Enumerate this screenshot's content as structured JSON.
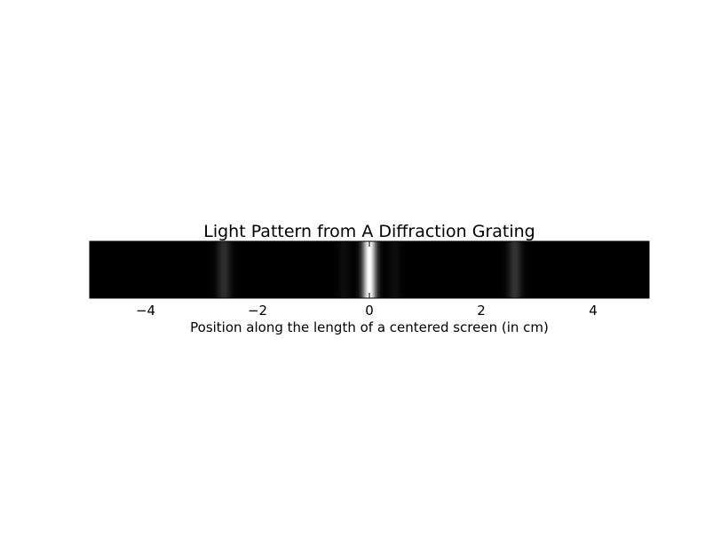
{
  "chart_data": {
    "type": "heatmap",
    "title": "Light Pattern from A Diffraction Grating",
    "xlabel": "Position along the length of a centered screen (in cm)",
    "ylabel": "",
    "xlim": [
      -5,
      5
    ],
    "xticks": [
      -4,
      -2,
      0,
      2,
      4
    ],
    "xtick_labels": [
      "−4",
      "−2",
      "0",
      "2",
      "4"
    ],
    "colormap": "gray",
    "background_color": "#000000",
    "peaks": [
      {
        "x": 0.0,
        "intensity": 1.0,
        "width": 0.12
      },
      {
        "x": -2.6,
        "intensity": 0.18,
        "width": 0.12
      },
      {
        "x": 2.6,
        "intensity": 0.2,
        "width": 0.12
      },
      {
        "x": -0.45,
        "intensity": 0.05,
        "width": 0.1
      },
      {
        "x": 0.45,
        "intensity": 0.05,
        "width": 0.1
      }
    ],
    "grid": false,
    "legend": "none"
  }
}
